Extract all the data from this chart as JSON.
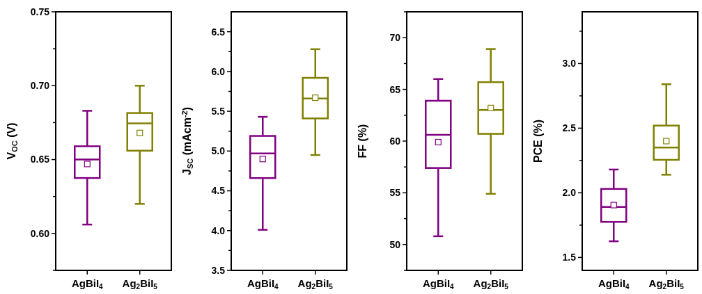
{
  "chart_data": [
    {
      "type": "box",
      "categories": [
        "AgBiI$_{4}$",
        "Ag$_{2}$BiI$_{5}$"
      ],
      "colors": [
        "#800080",
        "#808000"
      ],
      "ylabel": "V$_{OC}$ (V)",
      "ylim": [
        0.575,
        0.75
      ],
      "yticks": [
        {
          "value": 0.575,
          "label": null
        },
        {
          "value": 0.6,
          "label": "0.60"
        },
        {
          "value": 0.625,
          "label": null
        },
        0.65,
        {
          "value": 0.675,
          "label": null
        },
        {
          "value": 0.7,
          "label": "0.70"
        },
        {
          "value": 0.725,
          "label": null
        },
        0.75
      ],
      "boxes": [
        {
          "low": 0.606,
          "q1": 0.6375,
          "median": 0.65,
          "q3": 0.659,
          "high": 0.683,
          "mean": 0.647
        },
        {
          "low": 0.62,
          "q1": 0.656,
          "median": 0.6745,
          "q3": 0.6815,
          "high": 0.7,
          "mean": 0.668
        }
      ]
    },
    {
      "type": "box",
      "categories": [
        "AgBiI$_{4}$",
        "Ag$_{2}$BiI$_{5}$"
      ],
      "colors": [
        "#800080",
        "#808000"
      ],
      "ylabel": "J$_{SC}$ (mAcm$^{-2}$)",
      "ylim": [
        3.5,
        6.75
      ],
      "yticks": [
        3.5,
        {
          "value": 3.75,
          "label": null
        },
        {
          "value": 4,
          "label": "4.0"
        },
        {
          "value": 4.25,
          "label": null
        },
        4.5,
        {
          "value": 4.75,
          "label": null
        },
        {
          "value": 5,
          "label": "5.0"
        },
        {
          "value": 5.25,
          "label": null
        },
        5.5,
        {
          "value": 5.75,
          "label": null
        },
        {
          "value": 6,
          "label": "6.0"
        },
        {
          "value": 6.25,
          "label": null
        },
        6.5
      ],
      "boxes": [
        {
          "low": 4.01,
          "q1": 4.66,
          "median": 4.97,
          "q3": 5.19,
          "high": 5.43,
          "mean": 4.9
        },
        {
          "low": 4.95,
          "q1": 5.41,
          "median": 5.66,
          "q3": 5.92,
          "high": 6.28,
          "mean": 5.67
        }
      ]
    },
    {
      "type": "box",
      "categories": [
        "AgBiI$_{4}$",
        "Ag$_{2}$BiI$_{5}$"
      ],
      "colors": [
        "#800080",
        "#808000"
      ],
      "ylabel": "FF (%)",
      "ylim": [
        47.5,
        72.5
      ],
      "yticks": [
        {
          "value": 47.5,
          "label": null
        },
        50,
        {
          "value": 52.5,
          "label": null
        },
        55,
        {
          "value": 57.5,
          "label": null
        },
        60,
        {
          "value": 62.5,
          "label": null
        },
        65,
        {
          "value": 67.5,
          "label": null
        },
        70,
        {
          "value": 72.5,
          "label": null
        }
      ],
      "boxes": [
        {
          "low": 50.8,
          "q1": 57.4,
          "median": 60.6,
          "q3": 63.9,
          "high": 66.0,
          "mean": 59.9
        },
        {
          "low": 54.9,
          "q1": 60.7,
          "median": 63.0,
          "q3": 65.7,
          "high": 68.9,
          "mean": 63.2
        }
      ]
    },
    {
      "type": "box",
      "categories": [
        "AgBiI$_{4}$",
        "Ag$_{2}$BiI$_{5}$"
      ],
      "colors": [
        "#800080",
        "#808000"
      ],
      "ylabel": "PCE (%)",
      "ylim": [
        1.4,
        3.4
      ],
      "yticks": [
        1.5,
        {
          "value": 1.75,
          "label": null
        },
        {
          "value": 2,
          "label": "2.0"
        },
        {
          "value": 2.25,
          "label": null
        },
        2.5,
        {
          "value": 2.75,
          "label": null
        },
        {
          "value": 3,
          "label": "3.0"
        },
        {
          "value": 3.25,
          "label": null
        }
      ],
      "boxes": [
        {
          "low": 1.625,
          "q1": 1.775,
          "median": 1.89,
          "q3": 2.03,
          "high": 2.18,
          "mean": 1.905
        },
        {
          "low": 2.14,
          "q1": 2.255,
          "median": 2.35,
          "q3": 2.52,
          "high": 2.84,
          "mean": 2.4
        }
      ]
    }
  ]
}
